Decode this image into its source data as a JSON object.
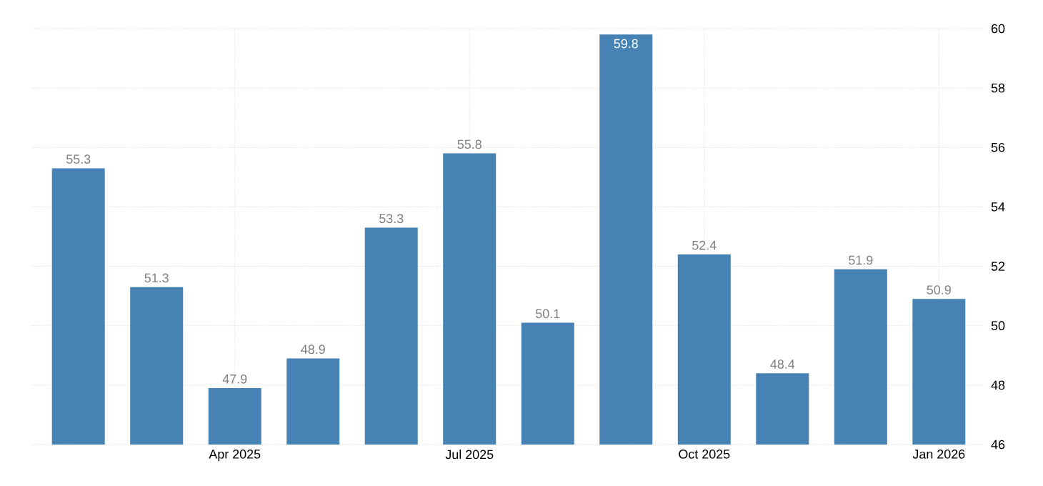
{
  "chart_data": {
    "type": "bar",
    "categories": [
      null,
      null,
      "Apr 2025",
      null,
      null,
      "Jul 2025",
      null,
      null,
      "Oct 2025",
      null,
      null,
      "Jan 2026"
    ],
    "values": [
      55.3,
      51.3,
      47.9,
      48.9,
      53.3,
      55.8,
      50.1,
      59.8,
      52.4,
      48.4,
      51.9,
      50.9
    ],
    "color": "#4682b4",
    "ylim": [
      46,
      60
    ],
    "yticks": [
      46,
      48,
      50,
      52,
      54,
      56,
      58,
      60
    ],
    "grid": true,
    "data_labels": true
  }
}
